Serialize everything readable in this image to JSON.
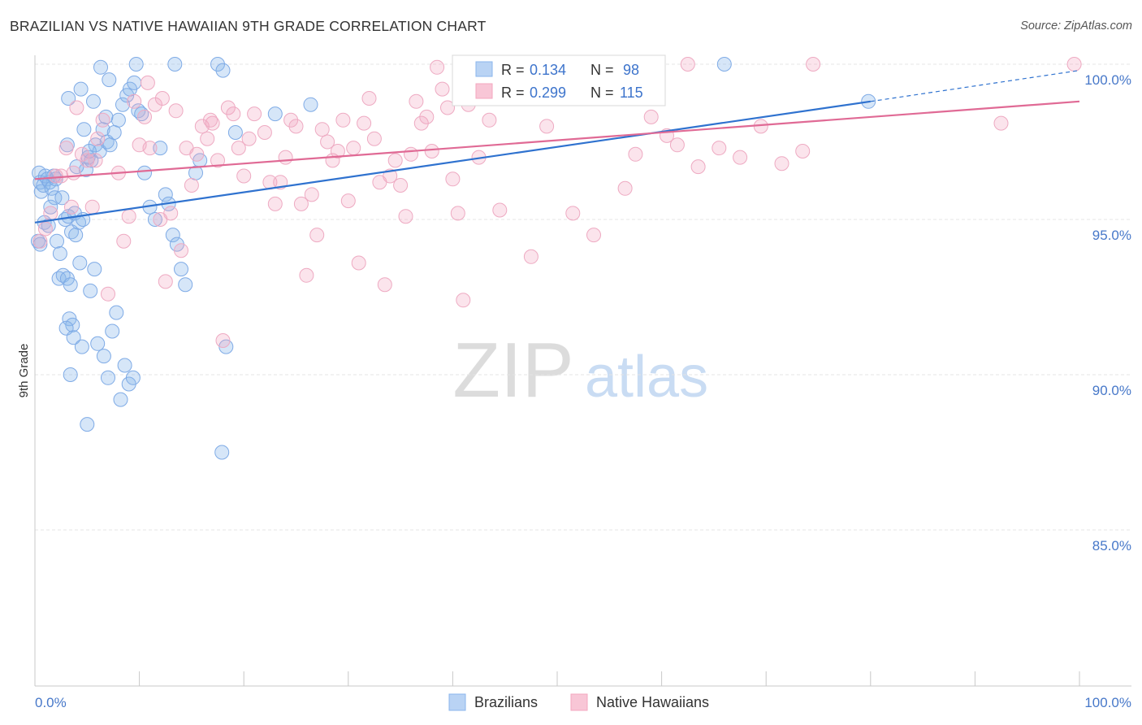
{
  "header": {
    "title": "BRAZILIAN VS NATIVE HAWAIIAN 9TH GRADE CORRELATION CHART",
    "source": "Source: ZipAtlas.com"
  },
  "watermark": {
    "zip": "ZIP",
    "atlas": "atlas"
  },
  "colors": {
    "blue": "#8ab6ec",
    "blue_line": "#2f72cf",
    "pink": "#f3a7bf",
    "pink_line": "#e06a95",
    "axis_text": "#4778c9",
    "grid": "#e4e4e4"
  },
  "legend": {
    "rows": [
      {
        "r_label": "R = ",
        "r_value": "0.134",
        "n_label": "N = ",
        "n_value": "98"
      },
      {
        "r_label": "R = ",
        "r_value": "0.299",
        "n_label": "N = ",
        "n_value": "115"
      }
    ]
  },
  "bottom_legend": [
    "Brazilians",
    "Native Hawaiians"
  ],
  "chart_data": {
    "type": "scatter",
    "title": "BRAZILIAN VS NATIVE HAWAIIAN 9TH GRADE CORRELATION CHART",
    "xlabel": "",
    "ylabel": "9th Grade",
    "xlim": [
      0,
      100
    ],
    "ylim": [
      80.5,
      100.5
    ],
    "x_tick_labels": [
      "0.0%",
      "100.0%"
    ],
    "y_ticks": [
      85,
      90,
      95,
      100
    ],
    "y_tick_labels": [
      "85.0%",
      "90.0%",
      "95.0%",
      "100.0%"
    ],
    "grid": true,
    "legend_position": "top-center",
    "series": [
      {
        "name": "Brazilians",
        "color": "#8ab6ec",
        "trend": {
          "x": [
            0,
            80
          ],
          "y": [
            94.9,
            98.8
          ],
          "dashed_extension_to": [
            100,
            99.8
          ]
        },
        "points": [
          [
            0.4,
            96.5
          ],
          [
            0.5,
            96.2
          ],
          [
            0.6,
            95.9
          ],
          [
            0.8,
            96.1
          ],
          [
            1.0,
            96.4
          ],
          [
            1.2,
            96.3
          ],
          [
            1.4,
            96.2
          ],
          [
            1.6,
            96.0
          ],
          [
            1.8,
            96.4
          ],
          [
            2.0,
            96.3
          ],
          [
            0.3,
            94.3
          ],
          [
            0.5,
            94.2
          ],
          [
            0.9,
            94.9
          ],
          [
            1.3,
            94.8
          ],
          [
            1.5,
            95.4
          ],
          [
            1.9,
            95.7
          ],
          [
            2.1,
            94.3
          ],
          [
            2.4,
            93.9
          ],
          [
            2.6,
            95.7
          ],
          [
            2.9,
            95.0
          ],
          [
            3.2,
            95.1
          ],
          [
            3.5,
            94.6
          ],
          [
            3.8,
            95.2
          ],
          [
            4.2,
            94.9
          ],
          [
            4.6,
            95.0
          ],
          [
            4.9,
            96.6
          ],
          [
            5.1,
            97.0
          ],
          [
            5.4,
            96.9
          ],
          [
            5.8,
            97.4
          ],
          [
            6.2,
            97.2
          ],
          [
            6.5,
            97.9
          ],
          [
            6.9,
            97.5
          ],
          [
            7.2,
            97.4
          ],
          [
            7.6,
            97.8
          ],
          [
            8.0,
            98.2
          ],
          [
            8.4,
            98.7
          ],
          [
            8.8,
            99.0
          ],
          [
            9.1,
            99.2
          ],
          [
            9.5,
            99.4
          ],
          [
            9.9,
            98.5
          ],
          [
            10.2,
            98.4
          ],
          [
            10.5,
            96.5
          ],
          [
            11.0,
            95.4
          ],
          [
            11.5,
            95.0
          ],
          [
            12.0,
            97.3
          ],
          [
            2.3,
            93.1
          ],
          [
            2.7,
            93.2
          ],
          [
            3.1,
            93.1
          ],
          [
            3.4,
            92.9
          ],
          [
            3.9,
            94.5
          ],
          [
            4.3,
            93.6
          ],
          [
            5.3,
            92.7
          ],
          [
            5.7,
            93.4
          ],
          [
            6.0,
            91.0
          ],
          [
            6.6,
            90.6
          ],
          [
            7.0,
            89.9
          ],
          [
            7.4,
            91.4
          ],
          [
            7.8,
            92.0
          ],
          [
            8.2,
            89.2
          ],
          [
            8.6,
            90.3
          ],
          [
            9.0,
            89.7
          ],
          [
            9.4,
            89.9
          ],
          [
            3.3,
            91.8
          ],
          [
            3.6,
            91.6
          ],
          [
            3.0,
            91.5
          ],
          [
            3.7,
            91.2
          ],
          [
            4.5,
            90.9
          ],
          [
            3.4,
            90.0
          ],
          [
            5.0,
            88.4
          ],
          [
            12.5,
            95.8
          ],
          [
            12.8,
            95.5
          ],
          [
            13.2,
            94.5
          ],
          [
            13.6,
            94.2
          ],
          [
            14.0,
            93.4
          ],
          [
            14.4,
            92.9
          ],
          [
            15.4,
            96.5
          ],
          [
            15.8,
            96.9
          ],
          [
            17.5,
            100.0
          ],
          [
            18.0,
            99.8
          ],
          [
            18.3,
            90.9
          ],
          [
            17.9,
            87.5
          ],
          [
            19.2,
            97.8
          ],
          [
            23.0,
            98.4
          ],
          [
            26.4,
            98.7
          ],
          [
            9.7,
            100.0
          ],
          [
            13.4,
            100.0
          ],
          [
            6.3,
            99.9
          ],
          [
            7.1,
            99.5
          ],
          [
            3.2,
            98.9
          ],
          [
            5.6,
            98.8
          ],
          [
            4.4,
            99.2
          ],
          [
            6.8,
            98.3
          ],
          [
            4.7,
            97.9
          ],
          [
            3.1,
            97.4
          ],
          [
            4.0,
            96.7
          ],
          [
            5.2,
            97.2
          ],
          [
            66.0,
            100.0
          ],
          [
            79.8,
            98.8
          ]
        ]
      },
      {
        "name": "Native Hawaiians",
        "color": "#f3a7bf",
        "trend": {
          "x": [
            0,
            100
          ],
          "y": [
            96.3,
            98.8
          ]
        },
        "points": [
          [
            0.5,
            94.3
          ],
          [
            1.0,
            94.7
          ],
          [
            1.5,
            95.2
          ],
          [
            2.0,
            96.4
          ],
          [
            2.5,
            96.4
          ],
          [
            3.0,
            97.3
          ],
          [
            3.5,
            95.4
          ],
          [
            4.0,
            98.6
          ],
          [
            4.5,
            97.1
          ],
          [
            5.0,
            96.9
          ],
          [
            5.5,
            95.4
          ],
          [
            6.0,
            97.6
          ],
          [
            6.5,
            98.2
          ],
          [
            7.0,
            92.6
          ],
          [
            8.0,
            96.5
          ],
          [
            8.5,
            94.3
          ],
          [
            9.0,
            95.1
          ],
          [
            9.5,
            98.8
          ],
          [
            10.0,
            97.4
          ],
          [
            10.5,
            98.3
          ],
          [
            11.0,
            97.3
          ],
          [
            11.5,
            98.7
          ],
          [
            12.0,
            95.0
          ],
          [
            12.5,
            93.0
          ],
          [
            13.0,
            95.2
          ],
          [
            13.5,
            98.5
          ],
          [
            14.0,
            94.0
          ],
          [
            14.5,
            97.3
          ],
          [
            15.0,
            96.1
          ],
          [
            15.5,
            97.1
          ],
          [
            16.0,
            98.0
          ],
          [
            16.5,
            97.6
          ],
          [
            17.0,
            98.1
          ],
          [
            17.5,
            96.9
          ],
          [
            18.0,
            91.1
          ],
          [
            18.5,
            98.6
          ],
          [
            19.0,
            98.4
          ],
          [
            19.5,
            97.3
          ],
          [
            20.0,
            96.4
          ],
          [
            20.5,
            97.6
          ],
          [
            21.0,
            98.4
          ],
          [
            22.0,
            97.8
          ],
          [
            22.5,
            96.2
          ],
          [
            23.0,
            95.5
          ],
          [
            23.5,
            96.2
          ],
          [
            24.0,
            97.0
          ],
          [
            24.5,
            98.2
          ],
          [
            25.0,
            98.0
          ],
          [
            25.5,
            95.5
          ],
          [
            26.0,
            93.2
          ],
          [
            26.5,
            95.8
          ],
          [
            27.0,
            94.5
          ],
          [
            27.5,
            97.9
          ],
          [
            28.0,
            97.5
          ],
          [
            28.5,
            96.9
          ],
          [
            29.0,
            97.2
          ],
          [
            29.5,
            98.2
          ],
          [
            30.0,
            95.6
          ],
          [
            30.5,
            97.3
          ],
          [
            31.0,
            93.6
          ],
          [
            31.5,
            98.1
          ],
          [
            32.0,
            98.9
          ],
          [
            32.5,
            97.6
          ],
          [
            33.0,
            96.2
          ],
          [
            33.5,
            92.9
          ],
          [
            34.0,
            96.4
          ],
          [
            34.5,
            96.9
          ],
          [
            35.0,
            96.1
          ],
          [
            35.5,
            95.1
          ],
          [
            36.0,
            97.1
          ],
          [
            36.5,
            98.8
          ],
          [
            37.0,
            98.1
          ],
          [
            37.5,
            98.3
          ],
          [
            38.0,
            97.2
          ],
          [
            38.5,
            99.9
          ],
          [
            39.0,
            99.2
          ],
          [
            39.5,
            98.6
          ],
          [
            40.0,
            96.3
          ],
          [
            40.5,
            95.2
          ],
          [
            41.0,
            92.4
          ],
          [
            41.5,
            98.7
          ],
          [
            42.5,
            97.0
          ],
          [
            43.5,
            98.2
          ],
          [
            44.5,
            95.3
          ],
          [
            46.0,
            100.0
          ],
          [
            47.5,
            93.8
          ],
          [
            49.0,
            98.0
          ],
          [
            50.5,
            100.0
          ],
          [
            51.5,
            95.2
          ],
          [
            52.5,
            98.9
          ],
          [
            53.5,
            94.5
          ],
          [
            55.0,
            100.0
          ],
          [
            56.5,
            96.0
          ],
          [
            57.5,
            97.1
          ],
          [
            59.0,
            98.3
          ],
          [
            60.5,
            97.7
          ],
          [
            61.5,
            97.4
          ],
          [
            63.5,
            96.7
          ],
          [
            65.5,
            97.3
          ],
          [
            67.5,
            97.0
          ],
          [
            69.5,
            98.0
          ],
          [
            71.5,
            96.8
          ],
          [
            73.5,
            97.2
          ],
          [
            12.2,
            98.9
          ],
          [
            10.8,
            99.4
          ],
          [
            44.0,
            100.0
          ],
          [
            57.0,
            100.0
          ],
          [
            59.5,
            100.0
          ],
          [
            62.5,
            100.0
          ],
          [
            74.5,
            100.0
          ],
          [
            92.5,
            98.1
          ],
          [
            99.5,
            100.0
          ],
          [
            3.7,
            96.5
          ],
          [
            5.8,
            96.9
          ],
          [
            16.8,
            98.2
          ]
        ]
      }
    ]
  }
}
